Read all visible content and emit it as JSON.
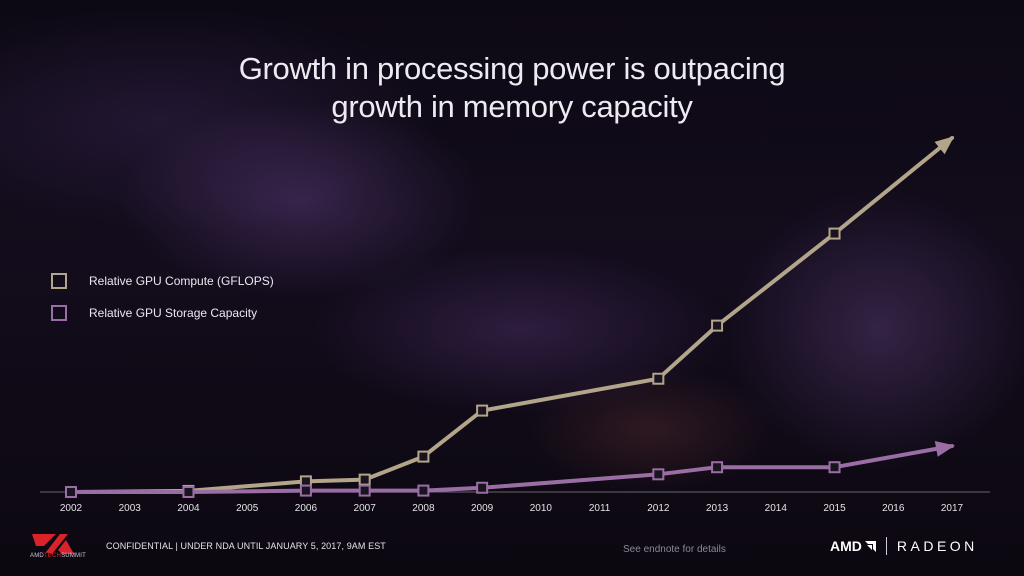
{
  "slide": {
    "title_line1": "Growth in processing power is outpacing",
    "title_line2": "growth in memory capacity"
  },
  "footer": {
    "confidential": "CONFIDENTIAL | UNDER NDA UNTIL JANUARY 5, 2017, 9AM EST",
    "note": "See endnote for details",
    "logo_text_part1": "AMD",
    "logo_text_part2": "TECH",
    "logo_text_part3": "SUMMIT",
    "brand_amd": "AMD",
    "brand_radeon": "RADEON"
  },
  "colors": {
    "compute": "#b3a58a",
    "storage": "#9a6ea4",
    "axis": "#6a6470",
    "logo_red": "#d8232a"
  },
  "chart_data": {
    "type": "line",
    "title": "Growth in processing power is outpacing growth in memory capacity",
    "xlabel": "",
    "ylabel": "",
    "categories": [
      "2002",
      "2003",
      "2004",
      "2005",
      "2006",
      "2007",
      "2008",
      "2009",
      "2010",
      "2011",
      "2012",
      "2013",
      "2014",
      "2015",
      "2016",
      "2017"
    ],
    "legend_position": "left",
    "grid": false,
    "ylim": [
      0,
      100
    ],
    "series": [
      {
        "name": "Relative GPU Compute (GFLOPS)",
        "color": "#b3a58a",
        "points": [
          {
            "x": "2002",
            "y": 0
          },
          {
            "x": "2004",
            "y": 0.3
          },
          {
            "x": "2006",
            "y": 3
          },
          {
            "x": "2007",
            "y": 3.5
          },
          {
            "x": "2008",
            "y": 10
          },
          {
            "x": "2009",
            "y": 23
          },
          {
            "x": "2012",
            "y": 32
          },
          {
            "x": "2013",
            "y": 47
          },
          {
            "x": "2015",
            "y": 73
          },
          {
            "x": "2017",
            "y": 100
          }
        ],
        "marker_xs": [
          "2002",
          "2004",
          "2006",
          "2007",
          "2008",
          "2009",
          "2012",
          "2013",
          "2015"
        ],
        "arrow_end": true
      },
      {
        "name": "Relative GPU Storage Capacity",
        "color": "#9a6ea4",
        "points": [
          {
            "x": "2002",
            "y": 0
          },
          {
            "x": "2004",
            "y": 0
          },
          {
            "x": "2006",
            "y": 0.4
          },
          {
            "x": "2007",
            "y": 0.4
          },
          {
            "x": "2008",
            "y": 0.4
          },
          {
            "x": "2009",
            "y": 1.2
          },
          {
            "x": "2012",
            "y": 5
          },
          {
            "x": "2013",
            "y": 7
          },
          {
            "x": "2015",
            "y": 7
          },
          {
            "x": "2017",
            "y": 13
          }
        ],
        "marker_xs": [
          "2002",
          "2004",
          "2006",
          "2007",
          "2008",
          "2009",
          "2012",
          "2013",
          "2015"
        ],
        "arrow_end": true
      }
    ]
  }
}
